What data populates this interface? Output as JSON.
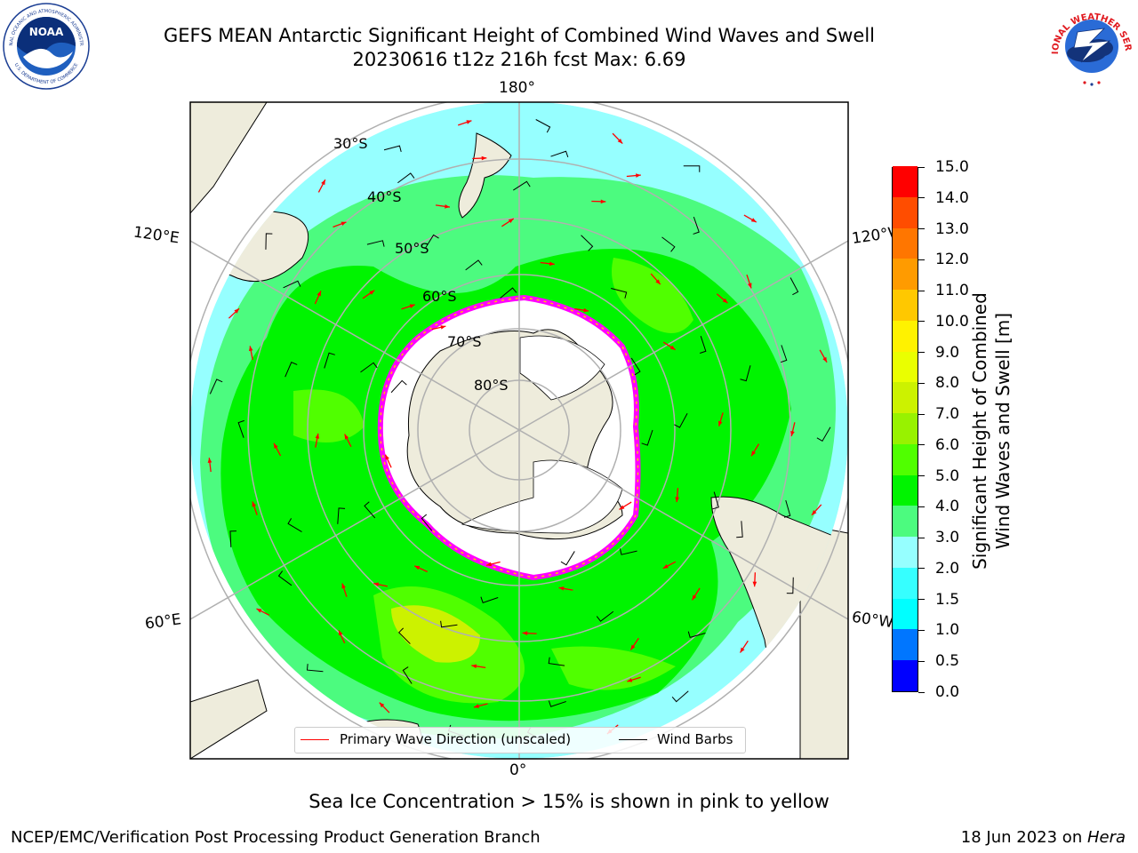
{
  "header": {
    "title_line1": "GEFS MEAN Antarctic Significant Height of Combined Wind Waves and Swell",
    "title_line2": "20230616 t12z 216h fcst   Max: 6.69"
  },
  "logos": {
    "noaa": {
      "name": "noaa-logo",
      "text": "NOAA",
      "ring_text_top": "NATIONAL OCEANIC AND ATMOSPHERIC ADMINISTRATION",
      "ring_text_bottom": "U.S. DEPARTMENT OF COMMERCE"
    },
    "nws": {
      "name": "nws-logo",
      "ring_text": "NATIONAL WEATHER SERVICE"
    }
  },
  "map": {
    "projection": "south-polar-stereographic",
    "longitude_labels": [
      "180°",
      "120°E",
      "120°W",
      "60°E",
      "60°W",
      "0°"
    ],
    "latitude_labels": [
      "30°S",
      "40°S",
      "50°S",
      "60°S",
      "70°S",
      "80°S"
    ],
    "colors": {
      "land": "#eeecdc",
      "sea_ice_free_antarctic": "#ffffff",
      "sea_ice_edge": "#ff00ff",
      "grid": "#b0b0b0",
      "wave_arrow": "#ff0000",
      "wind_barb": "#000000"
    }
  },
  "colorbar": {
    "label_line1": "Significant Height of Combined",
    "label_line2": "Wind Waves and Swell [m]",
    "levels": [
      0.0,
      0.5,
      1.0,
      1.5,
      2.0,
      3.0,
      4.0,
      5.0,
      6.0,
      7.0,
      8.0,
      9.0,
      10.0,
      11.0,
      12.0,
      13.0,
      14.0,
      15.0
    ],
    "tick_labels": [
      "0.0",
      "0.5",
      "1.0",
      "1.5",
      "2.0",
      "3.0",
      "4.0",
      "5.0",
      "6.0",
      "7.0",
      "8.0",
      "9.0",
      "10.0",
      "11.0",
      "12.0",
      "13.0",
      "14.0",
      "15.0"
    ],
    "segment_colors": [
      "#0000ff",
      "#0076ff",
      "#00ffff",
      "#36ffff",
      "#96ffff",
      "#4cfb7f",
      "#00f400",
      "#50ff00",
      "#98f200",
      "#ccf200",
      "#eaff00",
      "#fff200",
      "#ffc800",
      "#ff9b00",
      "#ff7600",
      "#ff4d00",
      "#ff0000"
    ]
  },
  "legend": {
    "wave_direction": "Primary Wave Direction (unscaled)",
    "wind_barbs": "Wind Barbs"
  },
  "notes": {
    "sea_ice": "Sea Ice Concentration > 15% is shown in pink to yellow"
  },
  "footer": {
    "left": "NCEP/EMC/Verification Post Processing Product Generation Branch",
    "right_date": "18 Jun 2023 on ",
    "right_host": "Hera"
  }
}
